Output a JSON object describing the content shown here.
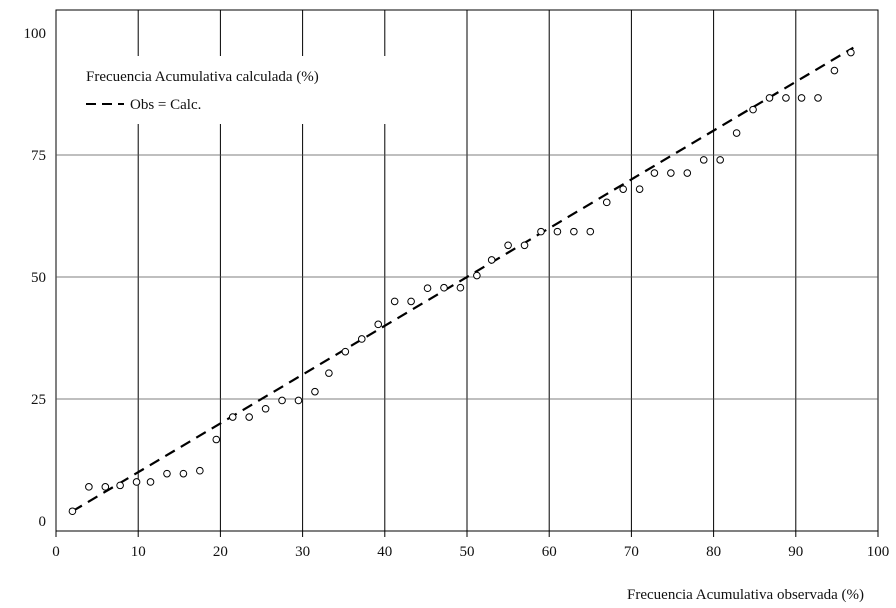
{
  "chart_data": {
    "type": "scatter",
    "title": "",
    "xlabel": "Frecuencia Acumulativa observada (%)",
    "ylabel": "",
    "xlim": [
      0,
      100
    ],
    "ylim": [
      0,
      100
    ],
    "x_ticks": [
      "0",
      "10",
      "20",
      "30",
      "40",
      "50",
      "60",
      "70",
      "80",
      "90",
      "100"
    ],
    "y_ticks": [
      "0",
      "25",
      "50",
      "75",
      "100"
    ],
    "grid": true,
    "legend_position": "top-left",
    "legend": [
      {
        "label": "Frecuencia Acumulativa calculada (%)",
        "marker": "open-circle"
      },
      {
        "label": "Obs = Calc.",
        "marker": "dashed-line"
      }
    ],
    "series": [
      {
        "name": "Frecuencia Acumulativa calculada (%)",
        "x": [
          2.0,
          4.0,
          6.0,
          7.8,
          9.8,
          11.5,
          13.5,
          15.5,
          17.5,
          19.5,
          21.5,
          23.5,
          25.5,
          27.5,
          29.5,
          31.5,
          33.2,
          35.2,
          37.2,
          39.2,
          41.2,
          43.2,
          45.2,
          47.2,
          49.2,
          51.2,
          53.0,
          55.0,
          57.0,
          59.0,
          61.0,
          63.0,
          65.0,
          67.0,
          69.0,
          71.0,
          72.8,
          74.8,
          76.8,
          78.8,
          80.8,
          82.8,
          84.8,
          86.8,
          88.8,
          90.7,
          92.7,
          94.7,
          96.7
        ],
        "y": [
          2.0,
          7.0,
          7.0,
          7.3,
          8.0,
          8.0,
          9.7,
          9.7,
          10.3,
          16.7,
          21.3,
          21.3,
          23.0,
          24.7,
          24.7,
          26.5,
          30.3,
          34.7,
          37.3,
          40.3,
          45.0,
          45.0,
          47.7,
          47.8,
          47.8,
          50.3,
          53.5,
          56.5,
          56.5,
          59.3,
          59.3,
          59.3,
          59.3,
          65.3,
          68.0,
          68.0,
          71.3,
          71.3,
          71.3,
          74.0,
          74.0,
          79.5,
          84.3,
          86.7,
          86.7,
          86.7,
          86.7,
          92.3,
          96.0
        ]
      },
      {
        "name": "Obs = Calc.",
        "x": [
          2,
          97
        ],
        "y": [
          2,
          97
        ]
      }
    ]
  }
}
